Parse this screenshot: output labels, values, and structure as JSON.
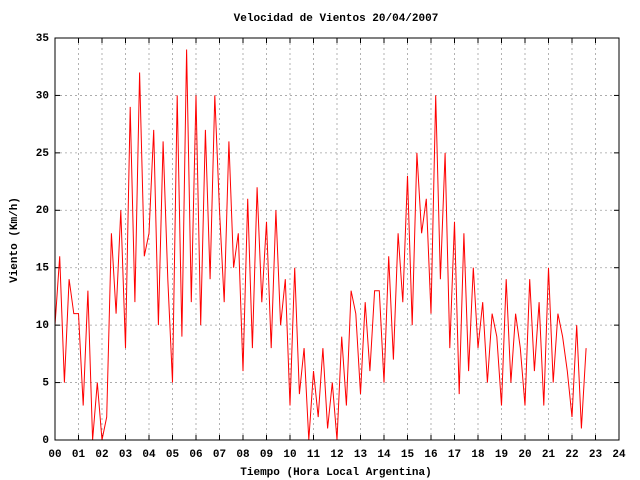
{
  "chart_data": {
    "type": "line",
    "title": "Velocidad de Vientos 20/04/2007",
    "x_label": "Tiempo (Hora Local Argentina)",
    "y_label": "Viento (Km/h)",
    "xlim": [
      0,
      24
    ],
    "ylim": [
      0,
      35
    ],
    "xticks": [
      {
        "value": 0,
        "label": "00"
      },
      {
        "value": 1,
        "label": "01"
      },
      {
        "value": 2,
        "label": "02"
      },
      {
        "value": 3,
        "label": "03"
      },
      {
        "value": 4,
        "label": "04"
      },
      {
        "value": 5,
        "label": "05"
      },
      {
        "value": 6,
        "label": "06"
      },
      {
        "value": 7,
        "label": "07"
      },
      {
        "value": 8,
        "label": "08"
      },
      {
        "value": 9,
        "label": "09"
      },
      10,
      11,
      12,
      13,
      14,
      15,
      16,
      17,
      18,
      19,
      20,
      21,
      22,
      23,
      24
    ],
    "yticks": [
      0,
      5,
      10,
      15,
      20,
      25,
      30,
      35
    ],
    "grid": true,
    "series": [
      {
        "color": "#ff0000",
        "x": [
          0,
          0.2,
          0.4,
          0.6,
          0.8,
          1,
          1.2,
          1.4,
          1.6,
          1.8,
          2,
          2.2,
          2.4,
          2.6,
          2.8,
          3,
          3.2,
          3.4,
          3.6,
          3.8,
          4,
          4.2,
          4.4,
          4.6,
          4.8,
          5,
          5.2,
          5.4,
          5.6,
          5.8,
          6,
          6.2,
          6.4,
          6.6,
          6.8,
          7,
          7.2,
          7.4,
          7.6,
          7.8,
          8,
          8.2,
          8.4,
          8.6,
          8.8,
          9,
          9.2,
          9.4,
          9.6,
          9.8,
          10,
          10.2,
          10.4,
          10.6,
          10.8,
          11,
          11.2,
          11.4,
          11.6,
          11.8,
          12,
          12.2,
          12.4,
          12.6,
          12.8,
          13,
          13.2,
          13.4,
          13.6,
          13.8,
          14,
          14.2,
          14.4,
          14.6,
          14.8,
          15,
          15.2,
          15.4,
          15.6,
          15.8,
          16,
          16.2,
          16.4,
          16.6,
          16.8,
          17,
          17.2,
          17.4,
          17.6,
          17.8,
          18,
          18.2,
          18.4,
          18.6,
          18.8,
          19,
          19.2,
          19.4,
          19.6,
          19.8,
          20,
          20.2,
          20.4,
          20.6,
          20.8,
          21,
          21.2,
          21.4,
          21.6,
          21.8,
          22,
          22.2,
          22.4,
          22.6
        ],
        "values": [
          10,
          16,
          5,
          14,
          11,
          11,
          3,
          13,
          0,
          5,
          0,
          2,
          18,
          11,
          20,
          8,
          29,
          12,
          32,
          16,
          18,
          27,
          10,
          26,
          14,
          5,
          30,
          9,
          34,
          12,
          30,
          10,
          27,
          14,
          30,
          20,
          12,
          26,
          15,
          18,
          6,
          21,
          8,
          22,
          12,
          19,
          8,
          20,
          10,
          14,
          3,
          15,
          4,
          8,
          0,
          6,
          2,
          8,
          1,
          5,
          0,
          9,
          3,
          13,
          11,
          4,
          12,
          6,
          13,
          13,
          5,
          16,
          7,
          18,
          12,
          23,
          10,
          25,
          18,
          21,
          11,
          30,
          14,
          25,
          8,
          19,
          4,
          18,
          6,
          15,
          8,
          12,
          5,
          11,
          9,
          3,
          14,
          5,
          11,
          8,
          3,
          14,
          6,
          12,
          3,
          15,
          5,
          11,
          9,
          6,
          2,
          10,
          1,
          8
        ]
      }
    ]
  }
}
